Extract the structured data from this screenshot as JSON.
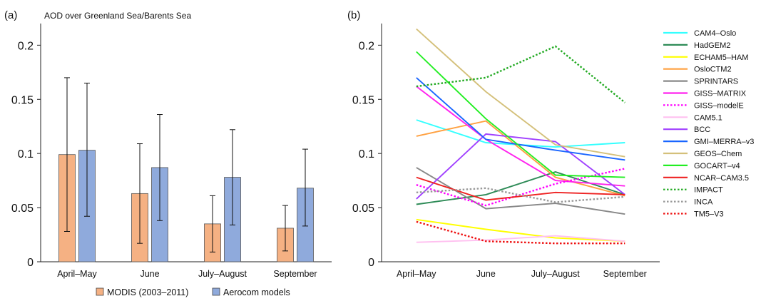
{
  "chart_data": [
    {
      "type": "bar",
      "panel_label": "(a)",
      "title": "AOD over Greenland Sea/Barents Sea",
      "categories": [
        "April–May",
        "June",
        "July–August",
        "September"
      ],
      "ylim": [
        0,
        0.22
      ],
      "yticks": [
        "0",
        "0.05",
        "0.1",
        "0.15",
        "0.2"
      ],
      "ytick_values": [
        0,
        0.05,
        0.1,
        0.15,
        0.2
      ],
      "grid": false,
      "legend_position": "bottom",
      "series": [
        {
          "name": "MODIS (2003–2011)",
          "color": "#f5b183",
          "values": [
            0.099,
            0.063,
            0.035,
            0.031
          ],
          "err_low": [
            0.028,
            0.017,
            0.009,
            0.01
          ],
          "err_high": [
            0.17,
            0.109,
            0.061,
            0.052
          ]
        },
        {
          "name": "Aerocom models",
          "color": "#8faadc",
          "values": [
            0.103,
            0.087,
            0.078,
            0.068
          ],
          "err_low": [
            0.042,
            0.038,
            0.034,
            0.033
          ],
          "err_high": [
            0.165,
            0.136,
            0.122,
            0.104
          ]
        }
      ]
    },
    {
      "type": "line",
      "panel_label": "(b)",
      "categories": [
        "April–May",
        "June",
        "July–August",
        "September"
      ],
      "ylim": [
        0,
        0.22
      ],
      "yticks": [
        "0",
        "0.05",
        "0.1",
        "0.15",
        "0.2"
      ],
      "ytick_values": [
        0,
        0.05,
        0.1,
        0.15,
        0.2
      ],
      "grid": false,
      "legend_position": "right",
      "series": [
        {
          "name": "CAM4–Oslo",
          "color": "#33ffff",
          "dash": false,
          "values": [
            0.131,
            0.11,
            0.106,
            0.11
          ]
        },
        {
          "name": "HadGEM2",
          "color": "#2e8b57",
          "dash": false,
          "values": [
            0.053,
            0.062,
            0.083,
            0.062
          ]
        },
        {
          "name": "ECHAM5–HAM",
          "color": "#ffff00",
          "dash": false,
          "values": [
            0.039,
            0.03,
            0.022,
            0.019
          ]
        },
        {
          "name": "OsloCTM2",
          "color": "#ffa040",
          "dash": false,
          "values": [
            0.116,
            0.13,
            0.078,
            0.061
          ]
        },
        {
          "name": "SPRINTARS",
          "color": "#888888",
          "dash": false,
          "values": [
            0.087,
            0.049,
            0.054,
            0.044
          ]
        },
        {
          "name": "GISS–MATRIX",
          "color": "#ff22ee",
          "dash": false,
          "values": [
            0.162,
            0.113,
            0.075,
            0.07
          ]
        },
        {
          "name": "GISS–modelE",
          "color": "#ff00ff",
          "dash": true,
          "values": [
            0.071,
            0.052,
            0.072,
            0.086
          ]
        },
        {
          "name": "CAM5.1",
          "color": "#ffc0f0",
          "dash": false,
          "values": [
            0.018,
            0.02,
            0.024,
            0.019
          ]
        },
        {
          "name": "BCC",
          "color": "#a040ff",
          "dash": false,
          "values": [
            0.058,
            0.118,
            0.111,
            0.062
          ]
        },
        {
          "name": "GMI–MERRA–v3",
          "color": "#1a66ff",
          "dash": false,
          "values": [
            0.17,
            0.113,
            0.103,
            0.094
          ]
        },
        {
          "name": "GEOS–Chem",
          "color": "#d4c07a",
          "dash": false,
          "values": [
            0.215,
            0.157,
            0.108,
            0.097
          ]
        },
        {
          "name": "GOCART–v4",
          "color": "#22ee22",
          "dash": false,
          "values": [
            0.194,
            0.132,
            0.08,
            0.078
          ]
        },
        {
          "name": "NCAR–CAM3.5",
          "color": "#ee2222",
          "dash": false,
          "values": [
            0.078,
            0.057,
            0.064,
            0.062
          ]
        },
        {
          "name": "IMPACT",
          "color": "#22aa22",
          "dash": true,
          "values": [
            0.162,
            0.17,
            0.199,
            0.147
          ]
        },
        {
          "name": "INCA",
          "color": "#999999",
          "dash": true,
          "values": [
            0.064,
            0.068,
            0.055,
            0.06
          ]
        },
        {
          "name": "TM5–V3",
          "color": "#ee1111",
          "dash": true,
          "values": [
            0.037,
            0.019,
            0.017,
            0.017
          ]
        }
      ]
    }
  ]
}
